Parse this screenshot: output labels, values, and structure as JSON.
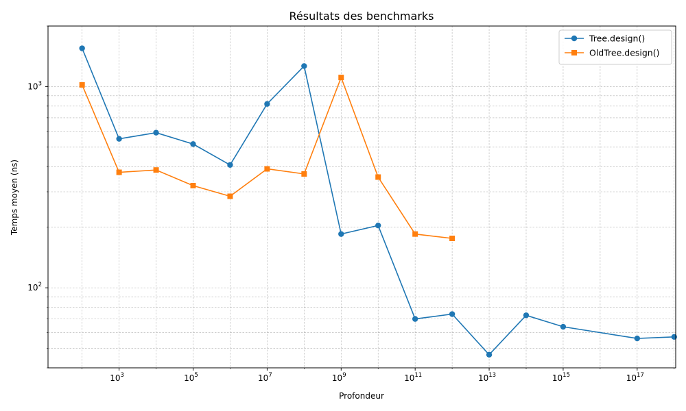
{
  "chart_data": {
    "type": "line",
    "title": "Résultats des benchmarks",
    "xlabel": "Profondeur",
    "ylabel": "Temps moyen (ns)",
    "xscale": "log",
    "yscale": "log",
    "xlim": [
      12,
      1.1e+18
    ],
    "ylim": [
      40,
      2000
    ],
    "x_ticks": [
      {
        "value": 1000.0,
        "base": "10",
        "exp": "3"
      },
      {
        "value": 100000.0,
        "base": "10",
        "exp": "5"
      },
      {
        "value": 10000000.0,
        "base": "10",
        "exp": "7"
      },
      {
        "value": 1000000000.0,
        "base": "10",
        "exp": "9"
      },
      {
        "value": 100000000000.0,
        "base": "10",
        "exp": "11"
      },
      {
        "value": 10000000000000.0,
        "base": "10",
        "exp": "13"
      },
      {
        "value": 1000000000000000.0,
        "base": "10",
        "exp": "15"
      },
      {
        "value": 1e+17,
        "base": "10",
        "exp": "17"
      }
    ],
    "y_ticks": [
      {
        "value": 100,
        "base": "10",
        "exp": "2"
      },
      {
        "value": 1000,
        "base": "10",
        "exp": "3"
      }
    ],
    "grid": true,
    "legend_position": "top-right",
    "series": [
      {
        "name": "Tree.design()",
        "color": "#1f77b4",
        "marker": "circle",
        "x": [
          100,
          1000,
          10000,
          100000,
          1000000,
          10000000,
          100000000,
          1000000000,
          10000000000,
          100000000000,
          1000000000000,
          10000000000000,
          100000000000000,
          1000000000000000,
          100000000000000000,
          1000000000000000000
        ],
        "y": [
          1550,
          550,
          590,
          518,
          408,
          820,
          1265,
          185,
          204,
          70,
          74,
          46.5,
          73,
          64,
          56,
          57
        ]
      },
      {
        "name": "OldTree.design()",
        "color": "#ff7f0e",
        "marker": "square",
        "x": [
          100,
          1000,
          10000,
          100000,
          1000000,
          10000000,
          100000000,
          1000000000,
          10000000000,
          100000000000,
          1000000000000
        ],
        "y": [
          1020,
          375,
          385,
          322,
          285,
          390,
          368,
          1110,
          355,
          185,
          176
        ]
      }
    ]
  }
}
